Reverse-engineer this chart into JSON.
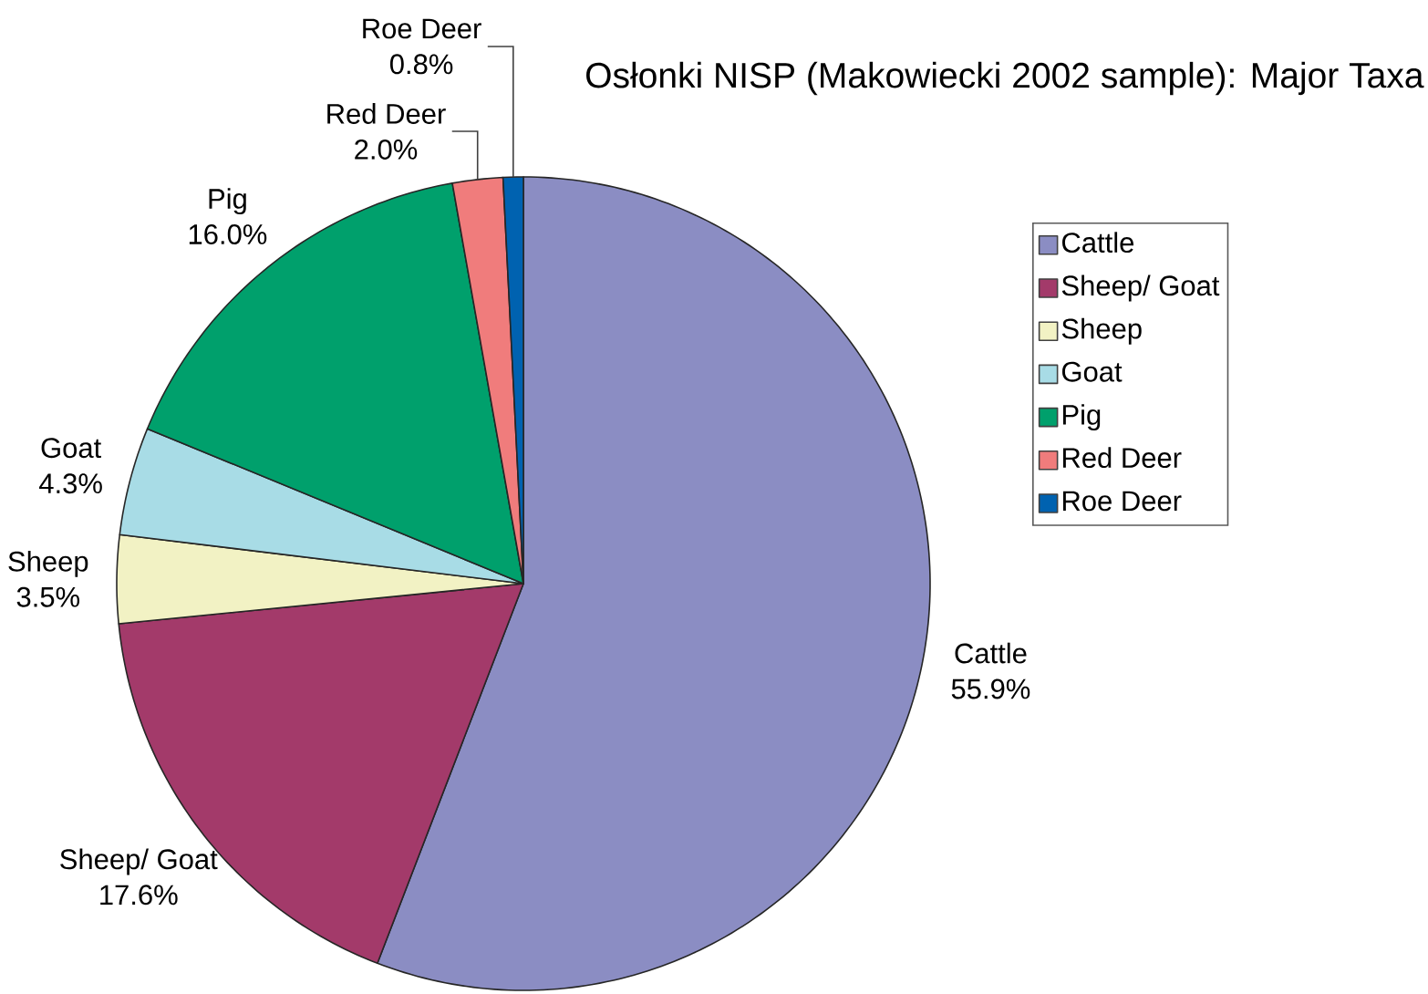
{
  "chart_data": {
    "type": "pie",
    "title": "Osłonki NISP (Makowiecki 2002 sample): Major Taxa",
    "categories": [
      "Cattle",
      "Sheep/ Goat",
      "Sheep",
      "Goat",
      "Pig",
      "Red Deer",
      "Roe Deer"
    ],
    "values": [
      55.9,
      17.6,
      3.5,
      4.3,
      16.0,
      2.0,
      0.8
    ],
    "colors": [
      "#8b8dc3",
      "#a33a6a",
      "#f2f2c4",
      "#a8dce6",
      "#00a06c",
      "#f07c7c",
      "#0062b0"
    ],
    "value_labels": [
      "55.9%",
      "17.6%",
      "3.5%",
      "4.3%",
      "16.0%",
      "2.0%",
      "0.8%"
    ],
    "legend": "right"
  }
}
